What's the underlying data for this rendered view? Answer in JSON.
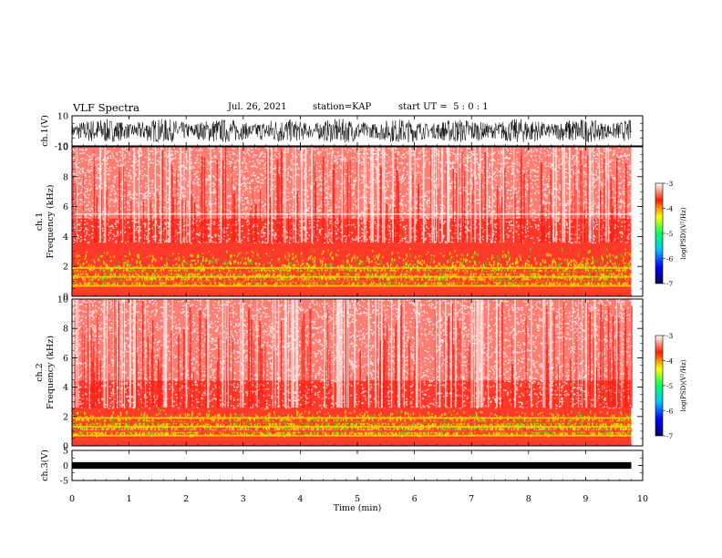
{
  "header": {
    "title": "VLF Spectra",
    "date": "Jul. 26, 2021",
    "station": "station=KAP",
    "start": "start UT =  5 : 0 : 1"
  },
  "colors": {
    "background": "#ffffff",
    "axis": "#000000",
    "colormap": [
      "#000060",
      "#0000ff",
      "#00c0ff",
      "#00ff60",
      "#ffff00",
      "#ff2000",
      "#ffffff"
    ]
  },
  "chart_data": [
    {
      "type": "line",
      "name": "ch1-waveform",
      "ylabel": "ch.1(V)",
      "ylim": [
        -10,
        10
      ],
      "y_ticks": [
        "10",
        "-10"
      ],
      "xlim": [
        0,
        10
      ],
      "trace_min": -8,
      "trace_max": 8,
      "trace_end_min": 9.8
    },
    {
      "type": "heatmap",
      "name": "ch1-spectrogram",
      "ylabel": "ch.1\nFrequency (kHz)",
      "ylabel_ch": "ch.1",
      "ylabel_freq": "Frequency (kHz)",
      "ylim": [
        0,
        10
      ],
      "y_ticks": [
        "0",
        "2",
        "4",
        "6",
        "8",
        "10"
      ],
      "xlim": [
        0,
        10
      ],
      "data_end_min": 9.8,
      "colorbar": {
        "label": "log(PSD)(V²/Hz)",
        "range": [
          -7,
          -3
        ],
        "ticks": [
          "-7",
          "-6",
          "-5",
          "-4",
          "-3"
        ]
      }
    },
    {
      "type": "heatmap",
      "name": "ch2-spectrogram",
      "ylabel": "ch.2\nFrequency (kHz)",
      "ylabel_ch": "ch.2",
      "ylabel_freq": "Frequency (kHz)",
      "ylim": [
        0,
        10
      ],
      "y_ticks": [
        "0",
        "2",
        "4",
        "6",
        "8",
        "10"
      ],
      "xlim": [
        0,
        10
      ],
      "data_end_min": 9.8,
      "colorbar": {
        "label": "log(PSD)(V²/Hz)",
        "range": [
          -7,
          -3
        ],
        "ticks": [
          "-7",
          "-6",
          "-5",
          "-4",
          "-3"
        ]
      }
    },
    {
      "type": "line",
      "name": "ch3-waveform",
      "ylabel": "ch.3(V)",
      "ylim": [
        -5,
        5
      ],
      "y_ticks": [
        "5",
        "0",
        "-5"
      ],
      "xlim": [
        0,
        10
      ],
      "trace_min": -0.5,
      "trace_max": 0.5,
      "trace_end_min": 9.8
    }
  ],
  "xaxis": {
    "label": "Time (min)",
    "ticks": [
      "0",
      "1",
      "2",
      "3",
      "4",
      "5",
      "6",
      "7",
      "8",
      "9",
      "10"
    ]
  }
}
